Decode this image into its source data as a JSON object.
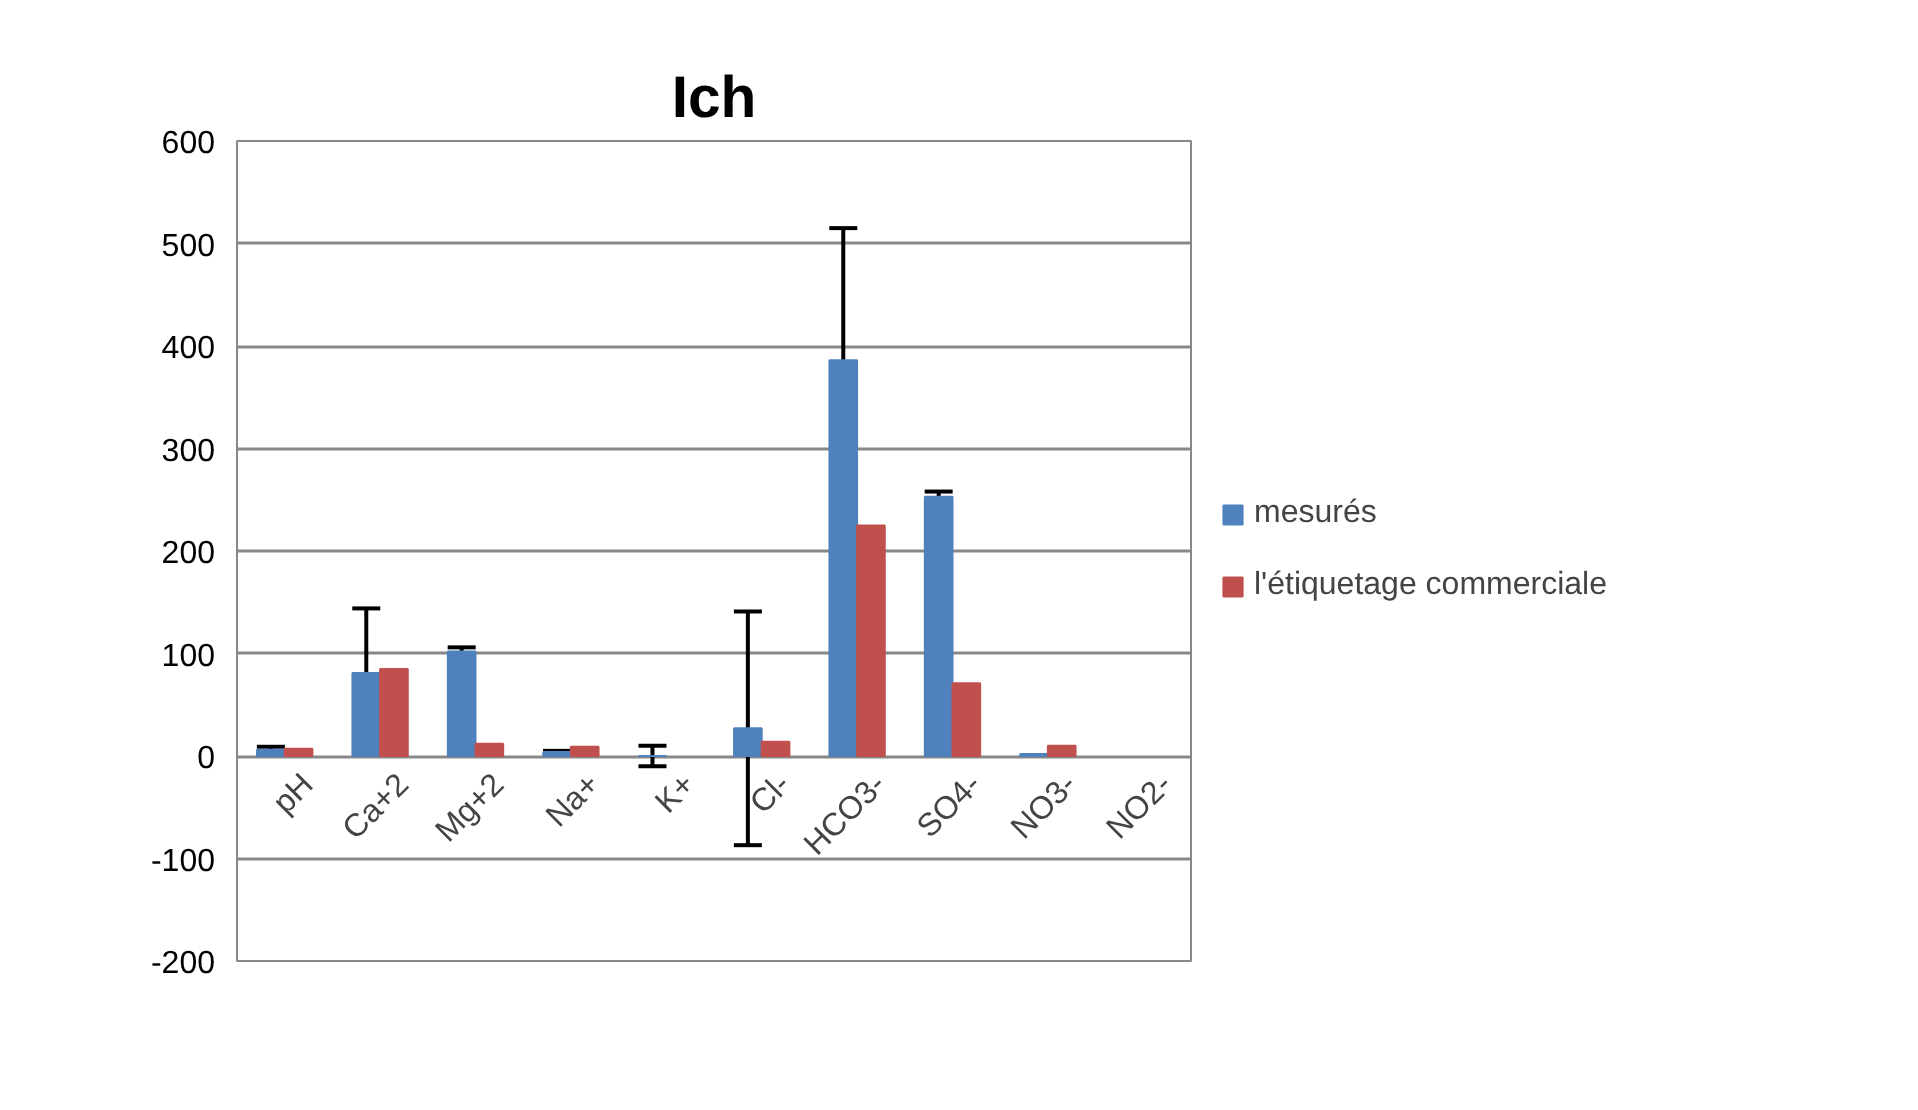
{
  "chart_data": {
    "type": "bar",
    "title": "Ich",
    "categories": [
      "pH",
      "Ca+2",
      "Mg+2",
      "Na+",
      "K+",
      "Cl-",
      "HCO3-",
      "SO4-",
      "NO3-",
      "NO2-"
    ],
    "series": [
      {
        "name": "mesurés",
        "color": "#4f81bd",
        "values": [
          6,
          81,
          102,
          4,
          0,
          27,
          386,
          253,
          2,
          null
        ],
        "errors": [
          3,
          63,
          4,
          1,
          10,
          114,
          129,
          5,
          null,
          null
        ]
      },
      {
        "name": "l'étiquetage commerciale",
        "color": "#c0504d",
        "values": [
          7,
          85,
          12,
          9,
          null,
          14,
          225,
          71,
          10,
          null
        ]
      }
    ],
    "ylim": [
      -200,
      600
    ],
    "yticks": [
      -200,
      -100,
      0,
      100,
      200,
      300,
      400,
      500,
      600
    ],
    "grid": "y",
    "legend": "right"
  }
}
